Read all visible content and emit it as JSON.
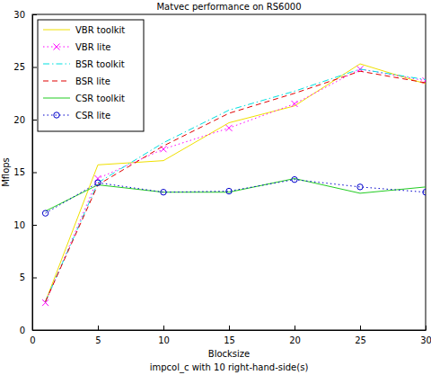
{
  "chart_data": {
    "type": "line",
    "title": "Matvec performance on RS6000",
    "subtitle": "impcol_c with 10 right-hand-side(s)",
    "x_label": "Blocksize",
    "y_label": "Mflops",
    "x": [
      1,
      5,
      10,
      15,
      20,
      25,
      30
    ],
    "xlim": [
      0,
      30
    ],
    "xticks": [
      0,
      5,
      10,
      15,
      20,
      25,
      30
    ],
    "ylim": [
      0,
      30
    ],
    "yticks": [
      0,
      5,
      10,
      15,
      20,
      25,
      30
    ],
    "grid": false,
    "legend": "upper left",
    "series": [
      {
        "name": "VBR toolkit",
        "color": "#f0e000",
        "line_style": "solid",
        "marker": "none",
        "values": [
          2.7,
          15.7,
          16.1,
          19.7,
          21.3,
          25.3,
          23.4
        ]
      },
      {
        "name": "VBR lite",
        "color": "#ff00ff",
        "line_style": "dotted",
        "marker": "x",
        "values": [
          2.6,
          14.4,
          17.2,
          19.2,
          21.5,
          24.8,
          23.7
        ]
      },
      {
        "name": "BSR toolkit",
        "color": "#00e0e0",
        "line_style": "dashdot",
        "marker": "none",
        "values": [
          2.7,
          14.0,
          17.8,
          20.9,
          22.7,
          24.8,
          23.8
        ]
      },
      {
        "name": "BSR lite",
        "color": "#e00000",
        "line_style": "dashed",
        "marker": "none",
        "values": [
          2.7,
          13.8,
          17.5,
          20.6,
          22.5,
          24.6,
          23.5
        ]
      },
      {
        "name": "CSR toolkit",
        "color": "#22cc22",
        "line_style": "solid",
        "marker": "none",
        "values": [
          11.3,
          13.8,
          13.1,
          13.1,
          14.4,
          13.0,
          13.6
        ]
      },
      {
        "name": "CSR lite",
        "color": "#0000cc",
        "line_style": "dotted",
        "marker": "o",
        "values": [
          11.1,
          14.0,
          13.1,
          13.2,
          14.3,
          13.6,
          13.1
        ]
      }
    ]
  }
}
